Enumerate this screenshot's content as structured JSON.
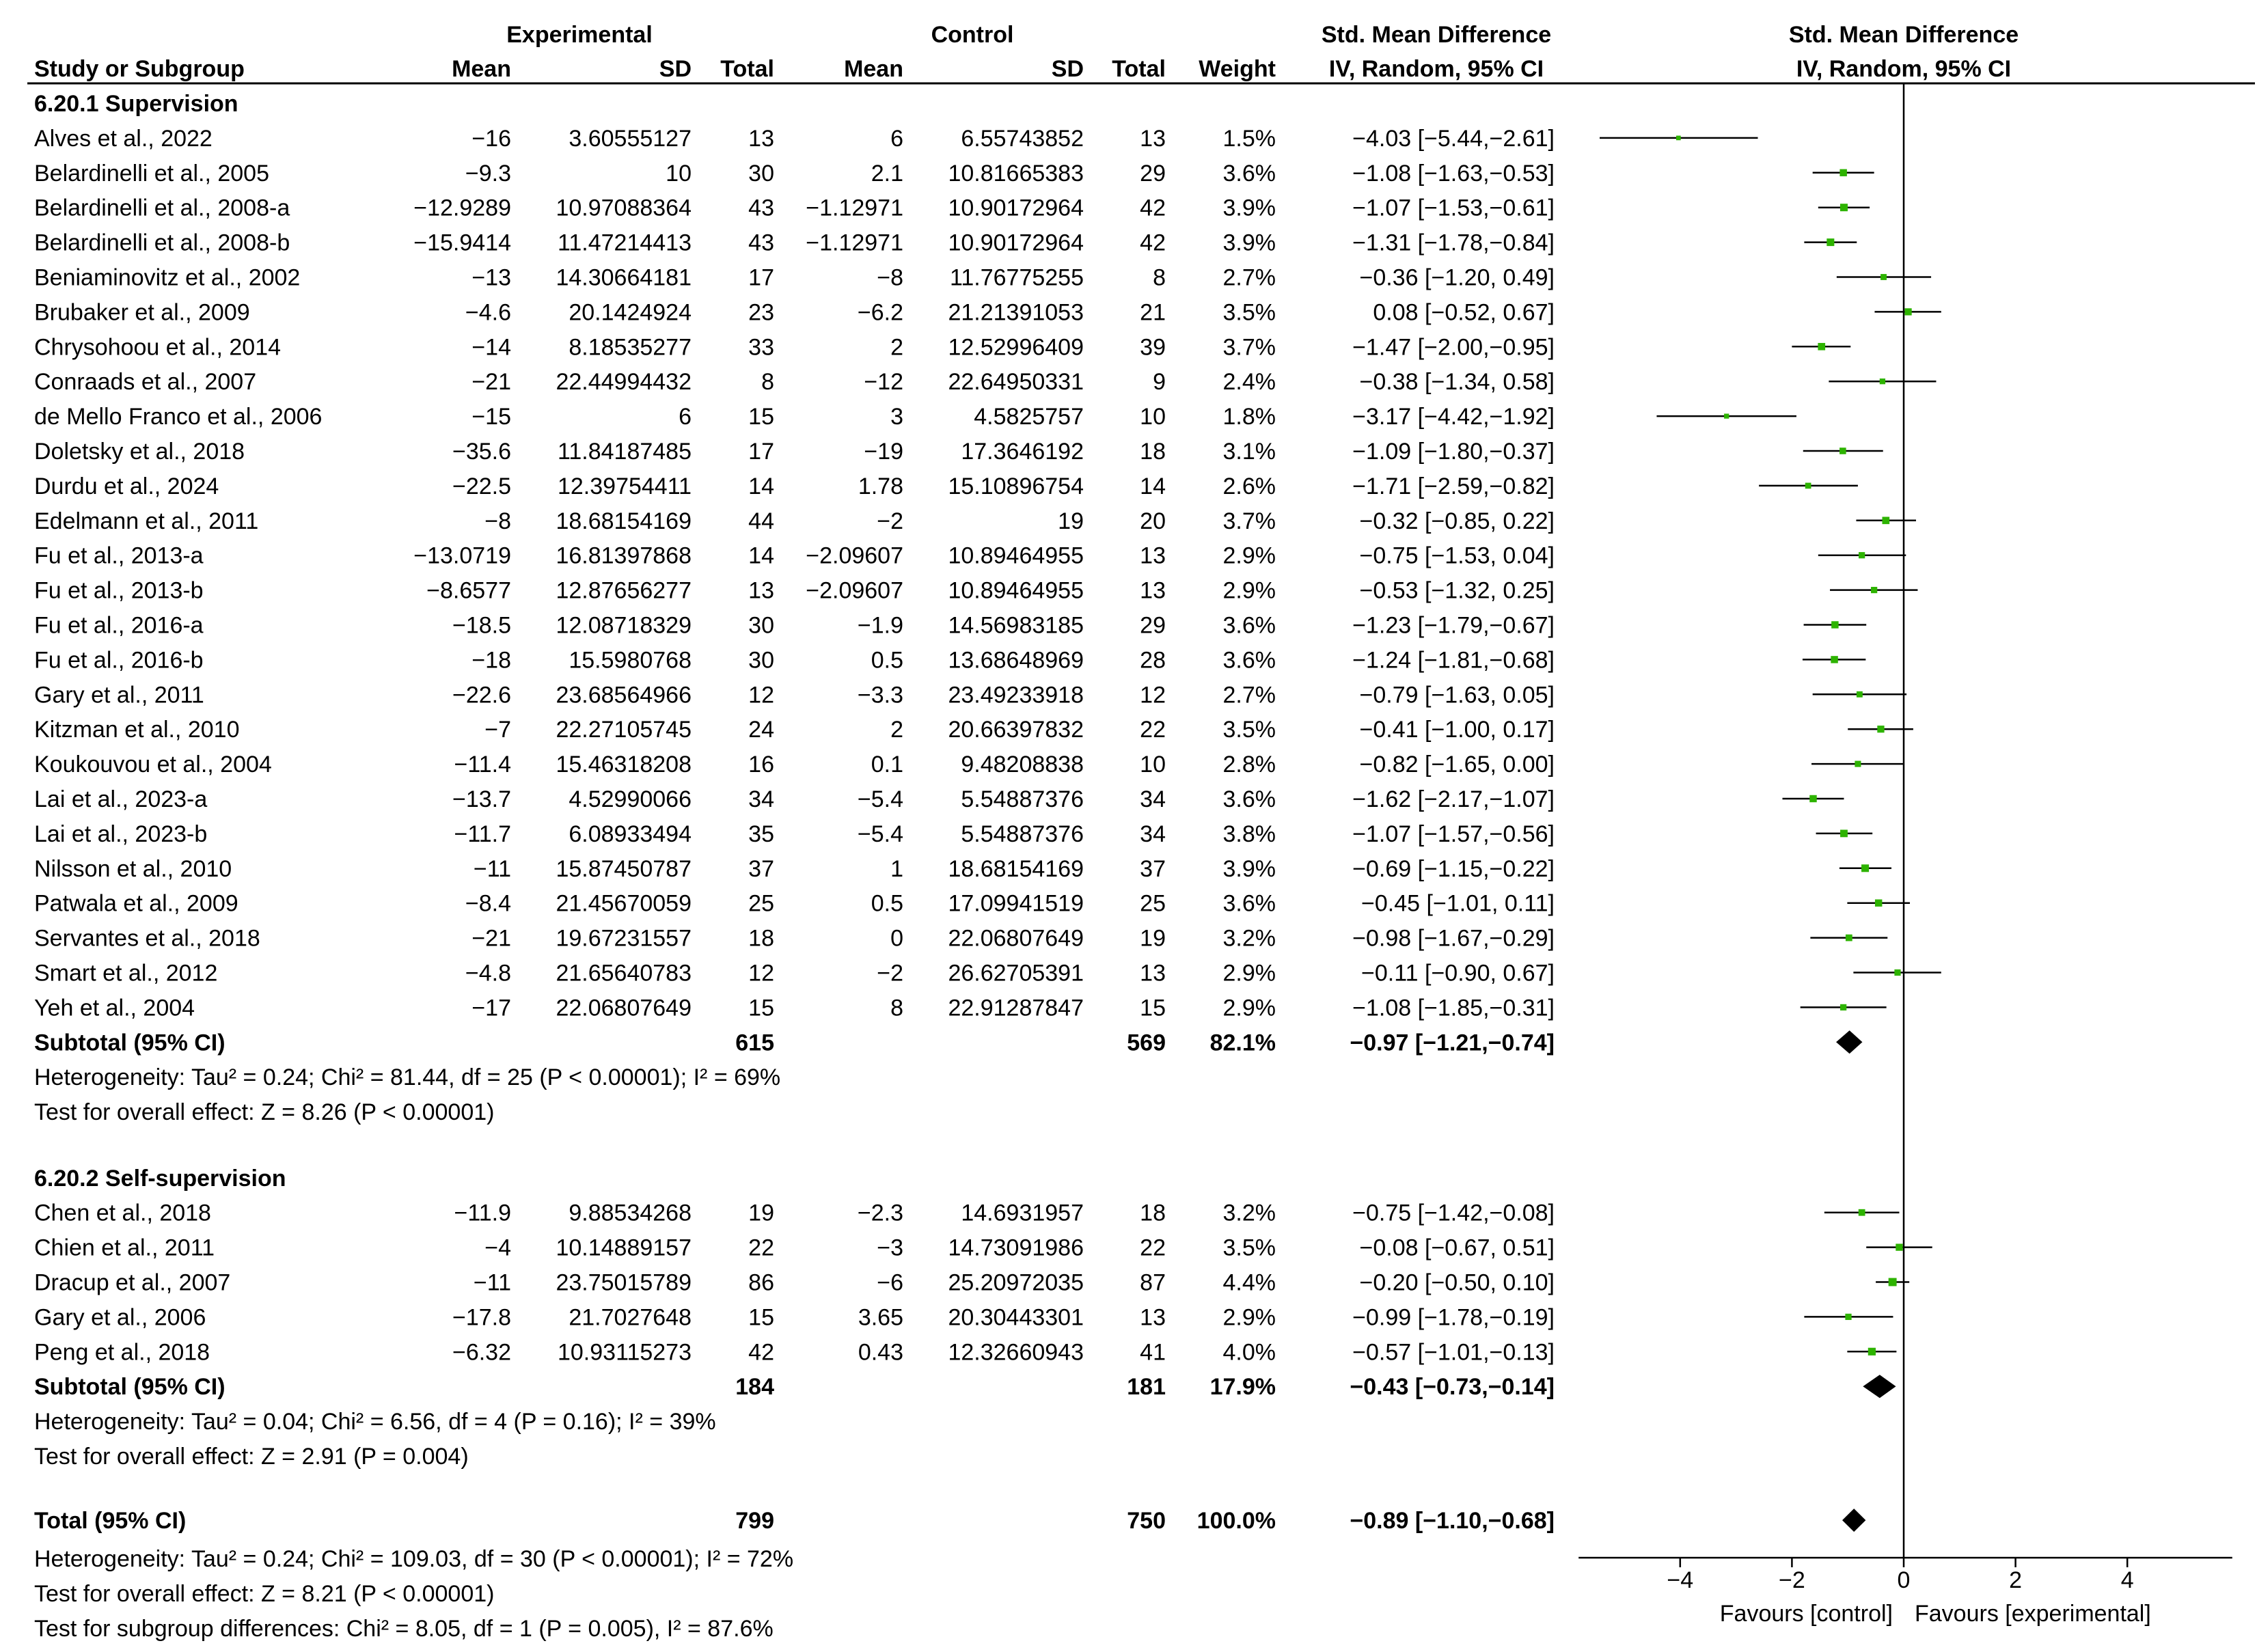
{
  "chart_data": {
    "type": "forest",
    "columns": {
      "group_experimental": "Experimental",
      "group_control": "Control",
      "group_effect_table": "Std. Mean Difference",
      "group_effect_plot": "Std. Mean Difference",
      "study": "Study or Subgroup",
      "mean_e": "Mean",
      "sd_e": "SD",
      "total_e": "Total",
      "mean_c": "Mean",
      "sd_c": "SD",
      "total_c": "Total",
      "weight": "Weight",
      "method_table": "IV, Random, 95% CI",
      "method_plot": "IV, Random, 95% CI"
    },
    "subgroups": [
      {
        "title": "6.20.1 Supervision",
        "studies": [
          {
            "name": "Alves et al., 2022",
            "mean_e": "−16",
            "sd_e": "3.60555127",
            "n_e": "13",
            "mean_c": "6",
            "sd_c": "6.55743852",
            "n_c": "13",
            "weight": "1.5%",
            "ci_text": "−4.03 [−5.44,−2.61]",
            "smd": -4.03,
            "lo": -5.44,
            "hi": -2.61,
            "w": 1.5
          },
          {
            "name": "Belardinelli et al., 2005",
            "mean_e": "−9.3",
            "sd_e": "10",
            "n_e": "30",
            "mean_c": "2.1",
            "sd_c": "10.81665383",
            "n_c": "29",
            "weight": "3.6%",
            "ci_text": "−1.08 [−1.63,−0.53]",
            "smd": -1.08,
            "lo": -1.63,
            "hi": -0.53,
            "w": 3.6
          },
          {
            "name": "Belardinelli et al., 2008-a",
            "mean_e": "−12.9289",
            "sd_e": "10.97088364",
            "n_e": "43",
            "mean_c": "−1.12971",
            "sd_c": "10.90172964",
            "n_c": "42",
            "weight": "3.9%",
            "ci_text": "−1.07 [−1.53,−0.61]",
            "smd": -1.07,
            "lo": -1.53,
            "hi": -0.61,
            "w": 3.9
          },
          {
            "name": "Belardinelli et al., 2008-b",
            "mean_e": "−15.9414",
            "sd_e": "11.47214413",
            "n_e": "43",
            "mean_c": "−1.12971",
            "sd_c": "10.90172964",
            "n_c": "42",
            "weight": "3.9%",
            "ci_text": "−1.31 [−1.78,−0.84]",
            "smd": -1.31,
            "lo": -1.78,
            "hi": -0.84,
            "w": 3.9
          },
          {
            "name": "Beniaminovitz et al., 2002",
            "mean_e": "−13",
            "sd_e": "14.30664181",
            "n_e": "17",
            "mean_c": "−8",
            "sd_c": "11.76775255",
            "n_c": "8",
            "weight": "2.7%",
            "ci_text": "−0.36 [−1.20, 0.49]",
            "smd": -0.36,
            "lo": -1.2,
            "hi": 0.49,
            "w": 2.7
          },
          {
            "name": "Brubaker et al., 2009",
            "mean_e": "−4.6",
            "sd_e": "20.1424924",
            "n_e": "23",
            "mean_c": "−6.2",
            "sd_c": "21.21391053",
            "n_c": "21",
            "weight": "3.5%",
            "ci_text": "0.08 [−0.52, 0.67]",
            "smd": 0.08,
            "lo": -0.52,
            "hi": 0.67,
            "w": 3.5
          },
          {
            "name": "Chrysohoou et al., 2014",
            "mean_e": "−14",
            "sd_e": "8.18535277",
            "n_e": "33",
            "mean_c": "2",
            "sd_c": "12.52996409",
            "n_c": "39",
            "weight": "3.7%",
            "ci_text": "−1.47 [−2.00,−0.95]",
            "smd": -1.47,
            "lo": -2.0,
            "hi": -0.95,
            "w": 3.7
          },
          {
            "name": "Conraads et al., 2007",
            "mean_e": "−21",
            "sd_e": "22.44994432",
            "n_e": "8",
            "mean_c": "−12",
            "sd_c": "22.64950331",
            "n_c": "9",
            "weight": "2.4%",
            "ci_text": "−0.38 [−1.34, 0.58]",
            "smd": -0.38,
            "lo": -1.34,
            "hi": 0.58,
            "w": 2.4
          },
          {
            "name": "de Mello Franco et al., 2006",
            "mean_e": "−15",
            "sd_e": "6",
            "n_e": "15",
            "mean_c": "3",
            "sd_c": "4.5825757",
            "n_c": "10",
            "weight": "1.8%",
            "ci_text": "−3.17 [−4.42,−1.92]",
            "smd": -3.17,
            "lo": -4.42,
            "hi": -1.92,
            "w": 1.8
          },
          {
            "name": "Doletsky et al., 2018",
            "mean_e": "−35.6",
            "sd_e": "11.84187485",
            "n_e": "17",
            "mean_c": "−19",
            "sd_c": "17.3646192",
            "n_c": "18",
            "weight": "3.1%",
            "ci_text": "−1.09 [−1.80,−0.37]",
            "smd": -1.09,
            "lo": -1.8,
            "hi": -0.37,
            "w": 3.1
          },
          {
            "name": "Durdu et al., 2024",
            "mean_e": "−22.5",
            "sd_e": "12.39754411",
            "n_e": "14",
            "mean_c": "1.78",
            "sd_c": "15.10896754",
            "n_c": "14",
            "weight": "2.6%",
            "ci_text": "−1.71 [−2.59,−0.82]",
            "smd": -1.71,
            "lo": -2.59,
            "hi": -0.82,
            "w": 2.6
          },
          {
            "name": "Edelmann et al., 2011",
            "mean_e": "−8",
            "sd_e": "18.68154169",
            "n_e": "44",
            "mean_c": "−2",
            "sd_c": "19",
            "n_c": "20",
            "weight": "3.7%",
            "ci_text": "−0.32 [−0.85, 0.22]",
            "smd": -0.32,
            "lo": -0.85,
            "hi": 0.22,
            "w": 3.7
          },
          {
            "name": "Fu et al., 2013-a",
            "mean_e": "−13.0719",
            "sd_e": "16.81397868",
            "n_e": "14",
            "mean_c": "−2.09607",
            "sd_c": "10.89464955",
            "n_c": "13",
            "weight": "2.9%",
            "ci_text": "−0.75 [−1.53, 0.04]",
            "smd": -0.75,
            "lo": -1.53,
            "hi": 0.04,
            "w": 2.9
          },
          {
            "name": "Fu et al., 2013-b",
            "mean_e": "−8.6577",
            "sd_e": "12.87656277",
            "n_e": "13",
            "mean_c": "−2.09607",
            "sd_c": "10.89464955",
            "n_c": "13",
            "weight": "2.9%",
            "ci_text": "−0.53 [−1.32, 0.25]",
            "smd": -0.53,
            "lo": -1.32,
            "hi": 0.25,
            "w": 2.9
          },
          {
            "name": "Fu et al., 2016-a",
            "mean_e": "−18.5",
            "sd_e": "12.08718329",
            "n_e": "30",
            "mean_c": "−1.9",
            "sd_c": "14.56983185",
            "n_c": "29",
            "weight": "3.6%",
            "ci_text": "−1.23 [−1.79,−0.67]",
            "smd": -1.23,
            "lo": -1.79,
            "hi": -0.67,
            "w": 3.6
          },
          {
            "name": "Fu et al., 2016-b",
            "mean_e": "−18",
            "sd_e": "15.5980768",
            "n_e": "30",
            "mean_c": "0.5",
            "sd_c": "13.68648969",
            "n_c": "28",
            "weight": "3.6%",
            "ci_text": "−1.24 [−1.81,−0.68]",
            "smd": -1.24,
            "lo": -1.81,
            "hi": -0.68,
            "w": 3.6
          },
          {
            "name": "Gary et al., 2011",
            "mean_e": "−22.6",
            "sd_e": "23.68564966",
            "n_e": "12",
            "mean_c": "−3.3",
            "sd_c": "23.49233918",
            "n_c": "12",
            "weight": "2.7%",
            "ci_text": "−0.79 [−1.63, 0.05]",
            "smd": -0.79,
            "lo": -1.63,
            "hi": 0.05,
            "w": 2.7
          },
          {
            "name": "Kitzman et al., 2010",
            "mean_e": "−7",
            "sd_e": "22.27105745",
            "n_e": "24",
            "mean_c": "2",
            "sd_c": "20.66397832",
            "n_c": "22",
            "weight": "3.5%",
            "ci_text": "−0.41 [−1.00, 0.17]",
            "smd": -0.41,
            "lo": -1.0,
            "hi": 0.17,
            "w": 3.5
          },
          {
            "name": "Koukouvou et al., 2004",
            "mean_e": "−11.4",
            "sd_e": "15.46318208",
            "n_e": "16",
            "mean_c": "0.1",
            "sd_c": "9.48208838",
            "n_c": "10",
            "weight": "2.8%",
            "ci_text": "−0.82 [−1.65, 0.00]",
            "smd": -0.82,
            "lo": -1.65,
            "hi": 0.0,
            "w": 2.8
          },
          {
            "name": "Lai et al., 2023-a",
            "mean_e": "−13.7",
            "sd_e": "4.52990066",
            "n_e": "34",
            "mean_c": "−5.4",
            "sd_c": "5.54887376",
            "n_c": "34",
            "weight": "3.6%",
            "ci_text": "−1.62 [−2.17,−1.07]",
            "smd": -1.62,
            "lo": -2.17,
            "hi": -1.07,
            "w": 3.6
          },
          {
            "name": "Lai et al., 2023-b",
            "mean_e": "−11.7",
            "sd_e": "6.08933494",
            "n_e": "35",
            "mean_c": "−5.4",
            "sd_c": "5.54887376",
            "n_c": "34",
            "weight": "3.8%",
            "ci_text": "−1.07 [−1.57,−0.56]",
            "smd": -1.07,
            "lo": -1.57,
            "hi": -0.56,
            "w": 3.8
          },
          {
            "name": "Nilsson et al., 2010",
            "mean_e": "−11",
            "sd_e": "15.87450787",
            "n_e": "37",
            "mean_c": "1",
            "sd_c": "18.68154169",
            "n_c": "37",
            "weight": "3.9%",
            "ci_text": "−0.69 [−1.15,−0.22]",
            "smd": -0.69,
            "lo": -1.15,
            "hi": -0.22,
            "w": 3.9
          },
          {
            "name": "Patwala et al., 2009",
            "mean_e": "−8.4",
            "sd_e": "21.45670059",
            "n_e": "25",
            "mean_c": "0.5",
            "sd_c": "17.09941519",
            "n_c": "25",
            "weight": "3.6%",
            "ci_text": "−0.45 [−1.01, 0.11]",
            "smd": -0.45,
            "lo": -1.01,
            "hi": 0.11,
            "w": 3.6
          },
          {
            "name": "Servantes et al., 2018",
            "mean_e": "−21",
            "sd_e": "19.67231557",
            "n_e": "18",
            "mean_c": "0",
            "sd_c": "22.06807649",
            "n_c": "19",
            "weight": "3.2%",
            "ci_text": "−0.98 [−1.67,−0.29]",
            "smd": -0.98,
            "lo": -1.67,
            "hi": -0.29,
            "w": 3.2
          },
          {
            "name": "Smart et al., 2012",
            "mean_e": "−4.8",
            "sd_e": "21.65640783",
            "n_e": "12",
            "mean_c": "−2",
            "sd_c": "26.62705391",
            "n_c": "13",
            "weight": "2.9%",
            "ci_text": "−0.11 [−0.90, 0.67]",
            "smd": -0.11,
            "lo": -0.9,
            "hi": 0.67,
            "w": 2.9
          },
          {
            "name": "Yeh et al., 2004",
            "mean_e": "−17",
            "sd_e": "22.06807649",
            "n_e": "15",
            "mean_c": "8",
            "sd_c": "22.91287847",
            "n_c": "15",
            "weight": "2.9%",
            "ci_text": "−1.08 [−1.85,−0.31]",
            "smd": -1.08,
            "lo": -1.85,
            "hi": -0.31,
            "w": 2.9
          }
        ],
        "subtotal": {
          "label": "Subtotal (95% CI)",
          "n_e": "615",
          "n_c": "569",
          "weight": "82.1%",
          "ci_text": "−0.97 [−1.21,−0.74]",
          "smd": -0.97,
          "lo": -1.21,
          "hi": -0.74
        },
        "heterogeneity": "Heterogeneity: Tau² = 0.24; Chi² = 81.44, df = 25 (P < 0.00001); I² = 69%",
        "overall_effect": "Test for overall effect: Z = 8.26 (P < 0.00001)"
      },
      {
        "title": "6.20.2 Self-supervision",
        "studies": [
          {
            "name": "Chen et al., 2018",
            "mean_e": "−11.9",
            "sd_e": "9.88534268",
            "n_e": "19",
            "mean_c": "−2.3",
            "sd_c": "14.6931957",
            "n_c": "18",
            "weight": "3.2%",
            "ci_text": "−0.75 [−1.42,−0.08]",
            "smd": -0.75,
            "lo": -1.42,
            "hi": -0.08,
            "w": 3.2
          },
          {
            "name": "Chien et al., 2011",
            "mean_e": "−4",
            "sd_e": "10.14889157",
            "n_e": "22",
            "mean_c": "−3",
            "sd_c": "14.73091986",
            "n_c": "22",
            "weight": "3.5%",
            "ci_text": "−0.08 [−0.67, 0.51]",
            "smd": -0.08,
            "lo": -0.67,
            "hi": 0.51,
            "w": 3.5
          },
          {
            "name": "Dracup et al., 2007",
            "mean_e": "−11",
            "sd_e": "23.75015789",
            "n_e": "86",
            "mean_c": "−6",
            "sd_c": "25.20972035",
            "n_c": "87",
            "weight": "4.4%",
            "ci_text": "−0.20 [−0.50, 0.10]",
            "smd": -0.2,
            "lo": -0.5,
            "hi": 0.1,
            "w": 4.4
          },
          {
            "name": "Gary et al., 2006",
            "mean_e": "−17.8",
            "sd_e": "21.7027648",
            "n_e": "15",
            "mean_c": "3.65",
            "sd_c": "20.30443301",
            "n_c": "13",
            "weight": "2.9%",
            "ci_text": "−0.99 [−1.78,−0.19]",
            "smd": -0.99,
            "lo": -1.78,
            "hi": -0.19,
            "w": 2.9
          },
          {
            "name": "Peng et al., 2018",
            "mean_e": "−6.32",
            "sd_e": "10.93115273",
            "n_e": "42",
            "mean_c": "0.43",
            "sd_c": "12.32660943",
            "n_c": "41",
            "weight": "4.0%",
            "ci_text": "−0.57 [−1.01,−0.13]",
            "smd": -0.57,
            "lo": -1.01,
            "hi": -0.13,
            "w": 4.0
          }
        ],
        "subtotal": {
          "label": "Subtotal (95% CI)",
          "n_e": "184",
          "n_c": "181",
          "weight": "17.9%",
          "ci_text": "−0.43 [−0.73,−0.14]",
          "smd": -0.43,
          "lo": -0.73,
          "hi": -0.14
        },
        "heterogeneity": "Heterogeneity: Tau² = 0.04; Chi² = 6.56, df = 4 (P = 0.16); I² = 39%",
        "overall_effect": "Test for overall effect: Z = 2.91 (P = 0.004)"
      }
    ],
    "total": {
      "label": "Total (95% CI)",
      "n_e": "799",
      "n_c": "750",
      "weight": "100.0%",
      "ci_text": "−0.89 [−1.10,−0.68]",
      "smd": -0.89,
      "lo": -1.1,
      "hi": -0.68
    },
    "total_heterogeneity": "Heterogeneity: Tau² = 0.24; Chi² = 109.03, df = 30 (P < 0.00001); I² = 72%",
    "total_overall_effect": "Test for overall effect: Z = 8.21 (P < 0.00001)",
    "subgroup_differences": "Test for subgroup differences: Chi² = 8.05, df = 1 (P = 0.005), I² = 87.6%",
    "x_axis": {
      "range": [
        -6,
        6
      ],
      "ticks": [
        -4,
        -2,
        0,
        2,
        4
      ],
      "tick_labels": [
        "−4",
        "−2",
        "0",
        "2",
        "4"
      ],
      "label_left": "Favours [control]",
      "label_right": "Favours [experimental]"
    },
    "colors": {
      "point": "#2db300",
      "line": "#000000",
      "diamond": "#000000"
    }
  }
}
